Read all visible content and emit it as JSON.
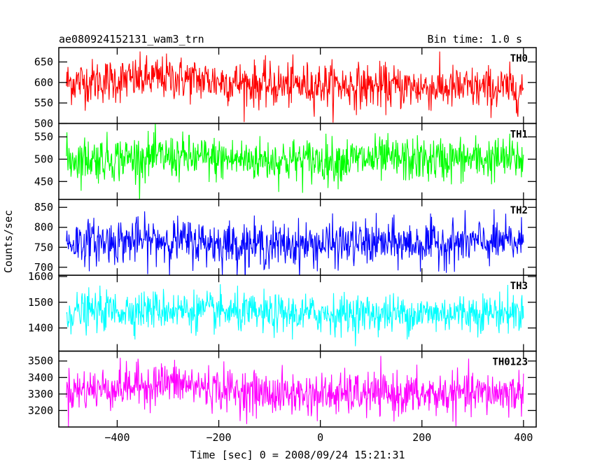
{
  "header": {
    "title": "ae080924152131_wam3_trn",
    "bin_time": "Bin time: 1.0 s"
  },
  "chart_data": {
    "type": "line",
    "title": "ae080924152131_wam3_trn",
    "xlabel": "Time [sec] 0 = 2008/09/24 15:21:31",
    "ylabel": "Counts/sec",
    "xlim": [
      -515,
      425
    ],
    "x_ticks": [
      -400,
      -200,
      0,
      200,
      400
    ],
    "x_tick_labels": [
      "−400",
      "−200",
      "0",
      "200",
      "400"
    ],
    "x_step": 1.0,
    "x_start": -500,
    "x_end": 400,
    "grid": false,
    "panels": [
      {
        "name": "TH0",
        "color": "#ff0000",
        "ylim": [
          500,
          685
        ],
        "y_ticks": [
          500,
          550,
          600,
          650
        ],
        "mean": 600,
        "std": 27,
        "envelope_x": [
          -500,
          -400,
          -300,
          -200,
          -100,
          0,
          100,
          200,
          300,
          400
        ],
        "envelope_mean": [
          600,
          605,
          612,
          603,
          592,
          595,
          590,
          588,
          585,
          585
        ]
      },
      {
        "name": "TH1",
        "color": "#00ff00",
        "ylim": [
          410,
          580
        ],
        "y_ticks": [
          450,
          500,
          550
        ],
        "mean": 500,
        "std": 25,
        "envelope_x": [
          -500,
          -400,
          -300,
          -200,
          -100,
          0,
          100,
          200,
          300,
          400
        ],
        "envelope_mean": [
          500,
          502,
          505,
          500,
          498,
          497,
          500,
          498,
          500,
          500
        ]
      },
      {
        "name": "TH2",
        "color": "#0000ff",
        "ylim": [
          680,
          870
        ],
        "y_ticks": [
          700,
          750,
          800,
          850
        ],
        "mean": 760,
        "std": 28,
        "envelope_x": [
          -500,
          -400,
          -300,
          -200,
          -100,
          0,
          100,
          200,
          300,
          400
        ],
        "envelope_mean": [
          762,
          765,
          768,
          760,
          755,
          757,
          760,
          758,
          762,
          762
        ]
      },
      {
        "name": "TH3",
        "color": "#00ffff",
        "ylim": [
          1310,
          1605
        ],
        "y_ticks": [
          1400,
          1500,
          1600
        ],
        "mean": 1460,
        "std": 38,
        "envelope_x": [
          -500,
          -400,
          -300,
          -200,
          -100,
          0,
          100,
          200,
          300,
          400
        ],
        "envelope_mean": [
          1460,
          1468,
          1472,
          1462,
          1452,
          1455,
          1455,
          1455,
          1460,
          1460
        ]
      },
      {
        "name": "TH0123",
        "color": "#ff00ff",
        "ylim": [
          3100,
          3560
        ],
        "y_ticks": [
          3200,
          3300,
          3400,
          3500
        ],
        "mean": 3320,
        "std": 65,
        "envelope_x": [
          -500,
          -400,
          -300,
          -200,
          -100,
          0,
          100,
          200,
          300,
          400
        ],
        "envelope_mean": [
          3320,
          3340,
          3370,
          3330,
          3300,
          3295,
          3300,
          3295,
          3300,
          3310
        ]
      }
    ]
  }
}
